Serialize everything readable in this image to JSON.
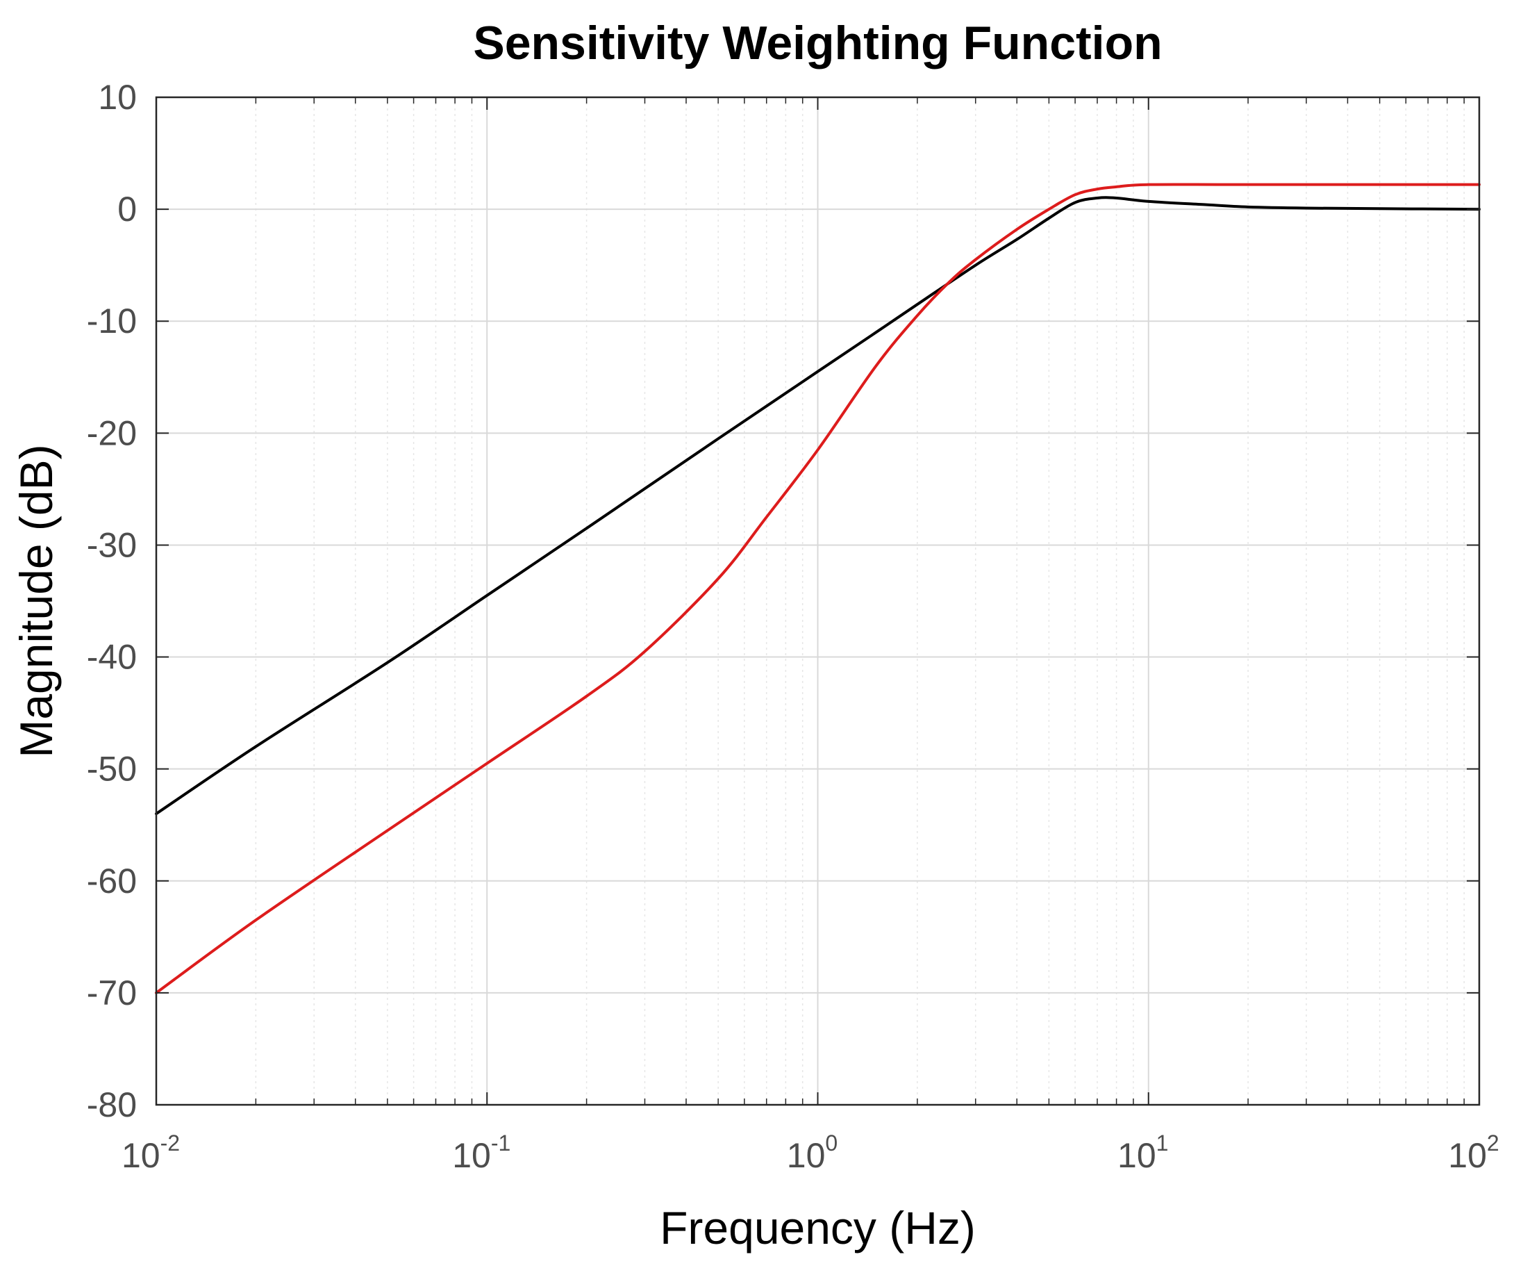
{
  "chart_data": {
    "type": "line",
    "title": "Sensitivity Weighting Function",
    "xlabel": "Frequency  (Hz)",
    "ylabel": "Magnitude (dB)",
    "xscale": "log",
    "xlim": [
      0.01,
      100
    ],
    "ylim": [
      -80,
      10
    ],
    "grid": true,
    "minor_grid": true,
    "x_ticks": [
      {
        "base": "10",
        "exp": "-2",
        "value": 0.01
      },
      {
        "base": "10",
        "exp": "-1",
        "value": 0.1
      },
      {
        "base": "10",
        "exp": "0",
        "value": 1
      },
      {
        "base": "10",
        "exp": "1",
        "value": 10
      },
      {
        "base": "10",
        "exp": "2",
        "value": 100
      }
    ],
    "y_ticks": [
      "10",
      "0",
      "-10",
      "-20",
      "-30",
      "-40",
      "-50",
      "-60",
      "-70",
      "-80"
    ],
    "series": [
      {
        "name": "black curve",
        "color": "#000000",
        "x": [
          0.01,
          0.02,
          0.05,
          0.1,
          0.2,
          0.5,
          1,
          1.5,
          2,
          3,
          4,
          5,
          6,
          7,
          8,
          10,
          15,
          20,
          30,
          50,
          100
        ],
        "y": [
          -54,
          -48,
          -40.5,
          -34.5,
          -28.5,
          -20.5,
          -14.5,
          -11,
          -8.5,
          -5,
          -2.7,
          -0.8,
          0.6,
          1.0,
          1.0,
          0.7,
          0.4,
          0.2,
          0.1,
          0.05,
          0
        ]
      },
      {
        "name": "red curve",
        "color": "#dd1c1c",
        "x": [
          0.01,
          0.02,
          0.05,
          0.1,
          0.2,
          0.3,
          0.5,
          0.7,
          1,
          1.5,
          2,
          2.5,
          3,
          4,
          5,
          6,
          7,
          8,
          10,
          20,
          100
        ],
        "y": [
          -70,
          -63.5,
          -55.5,
          -49.5,
          -43.5,
          -39.5,
          -33,
          -27.5,
          -21.5,
          -14,
          -9.5,
          -6.5,
          -4.5,
          -1.8,
          0,
          1.3,
          1.8,
          2.0,
          2.2,
          2.2,
          2.2
        ]
      }
    ]
  }
}
